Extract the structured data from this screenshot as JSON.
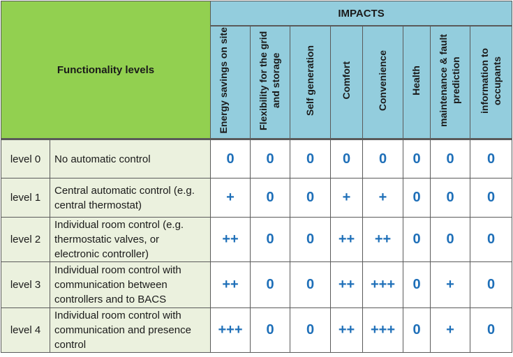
{
  "header": {
    "functionality_title": "Functionality levels",
    "impacts_title": "IMPACTS",
    "impact_columns": [
      "Energy savings on site",
      "Flexibility for the grid and storage",
      "Self generation",
      "Comfort",
      "Convenience",
      "Health",
      "maintenance & fault prediction",
      "information to occupants"
    ]
  },
  "rows": [
    {
      "level": "level 0",
      "description": "No automatic control",
      "values": [
        "0",
        "0",
        "0",
        "0",
        "0",
        "0",
        "0",
        "0"
      ]
    },
    {
      "level": "level 1",
      "description": "Central automatic control (e.g. central thermostat)",
      "values": [
        "+",
        "0",
        "0",
        "+",
        "+",
        "0",
        "0",
        "0"
      ]
    },
    {
      "level": "level 2",
      "description": "Individual room control (e.g. thermostatic valves, or electronic controller)",
      "values": [
        "++",
        "0",
        "0",
        "++",
        "++",
        "0",
        "0",
        "0"
      ]
    },
    {
      "level": "level 3",
      "description": "Individual room control with communication between controllers and to BACS",
      "values": [
        "++",
        "0",
        "0",
        "++",
        "+++",
        "0",
        "+",
        "0"
      ]
    },
    {
      "level": "level 4",
      "description": "Individual room control with communication and presence control",
      "values": [
        "+++",
        "0",
        "0",
        "++",
        "+++",
        "0",
        "+",
        "0"
      ]
    }
  ],
  "colors": {
    "functionality_header": "#92d050",
    "impacts_header": "#93cddd",
    "level_cells": "#ebf1de",
    "value_text": "#1e6fb8"
  }
}
